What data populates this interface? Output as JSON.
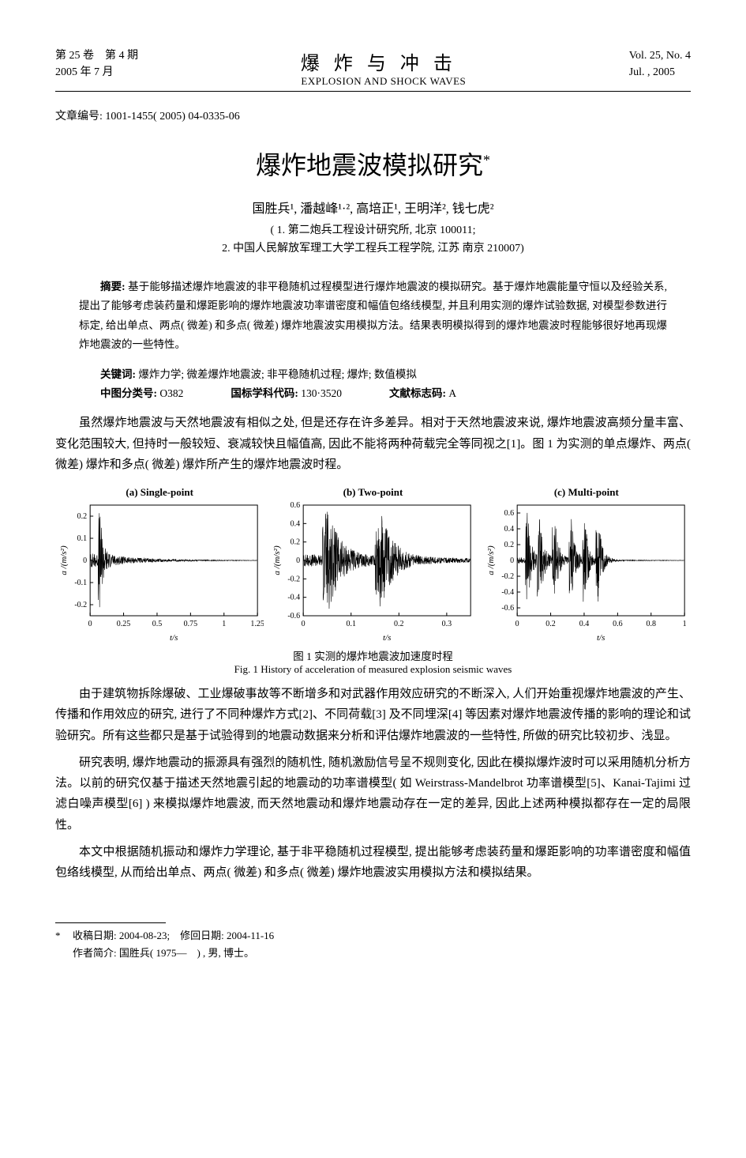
{
  "header": {
    "volume_line": "第 25 卷　第 4 期",
    "date_line": "2005 年 7 月",
    "journal_cn": "爆炸与冲击",
    "journal_en": "EXPLOSION AND SHOCK WAVES",
    "volno": "Vol. 25, No. 4",
    "issue_date": "Jul. , 2005"
  },
  "article_id": "文章编号: 1001-1455( 2005) 04-0335-06",
  "title": "爆炸地震波模拟研究",
  "title_mark": "*",
  "authors_html": "国胜兵¹, 潘越峰¹·², 高培正¹, 王明洋², 钱七虎²",
  "affil1": "( 1. 第二炮兵工程设计研究所, 北京 100011;",
  "affil2": "2. 中国人民解放军理工大学工程兵工程学院, 江苏 南京 210007)",
  "abstract": {
    "label": "摘要: ",
    "text": "基于能够描述爆炸地震波的非平稳随机过程模型进行爆炸地震波的模拟研究。基于爆炸地震能量守恒以及经验关系, 提出了能够考虑装药量和爆距影响的爆炸地震波功率谱密度和幅值包络线模型, 并且利用实测的爆炸试验数据, 对模型参数进行标定, 给出单点、两点( 微差) 和多点( 微差) 爆炸地震波实用模拟方法。结果表明模拟得到的爆炸地震波时程能够很好地再现爆炸地震波的一些特性。"
  },
  "keywords_label": "关键词: ",
  "keywords": "爆炸力学; 微差爆炸地震波; 非平稳随机过程; 爆炸; 数值模拟",
  "clc_label": "中图分类号: ",
  "clc": "O382",
  "subject_label": "国标学科代码: ",
  "subject": "130·3520",
  "doc_label": "文献标志码: ",
  "doc": "A",
  "para1": "虽然爆炸地震波与天然地震波有相似之处, 但是还存在许多差异。相对于天然地震波来说, 爆炸地震波高频分量丰富、变化范围较大, 但持时一般较短、衰减较快且幅值高, 因此不能将两种荷载完全等同视之[1]。图 1 为实测的单点爆炸、两点( 微差) 爆炸和多点( 微差) 爆炸所产生的爆炸地震波时程。",
  "figure": {
    "caption_cn": "图 1 实测的爆炸地震波加速度时程",
    "caption_en": "Fig. 1 History of acceleration of measured explosion seismic waves",
    "ylabel": "a /(m/s²)",
    "xlabel": "t/s",
    "axis_color": "#000000",
    "line_color": "#000000",
    "line_width": 0.6,
    "bg": "#ffffff",
    "panels": [
      {
        "title": "(a) Single-point",
        "xlim": [
          0,
          1.25
        ],
        "xticks": [
          0,
          0.25,
          0.5,
          0.75,
          1.0,
          1.25
        ],
        "ylim": [
          -0.25,
          0.25
        ],
        "yticks": [
          -0.2,
          -0.1,
          0,
          0.1,
          0.2
        ],
        "burst_centers": [
          0.07
        ],
        "burst_amp": 0.22,
        "tail_amp": 0.035
      },
      {
        "title": "(b) Two-point",
        "xlim": [
          0,
          0.35
        ],
        "xticks": [
          0,
          0.1,
          0.2,
          0.3
        ],
        "ylim": [
          -0.6,
          0.6
        ],
        "yticks": [
          -0.6,
          -0.4,
          -0.2,
          0,
          0.2,
          0.4,
          0.6
        ],
        "burst_centers": [
          0.05,
          0.16
        ],
        "burst_amp": 0.55,
        "tail_amp": 0.07
      },
      {
        "title": "(c) Multi-point",
        "xlim": [
          0,
          1.0
        ],
        "xticks": [
          0,
          0.2,
          0.4,
          0.6,
          0.8,
          1.0
        ],
        "ylim": [
          -0.7,
          0.7
        ],
        "yticks": [
          -0.6,
          -0.4,
          -0.2,
          0,
          0.2,
          0.4,
          0.6
        ],
        "burst_centers": [
          0.06,
          0.13,
          0.22,
          0.32,
          0.4,
          0.48
        ],
        "burst_amp": 0.6,
        "tail_amp": 0.04
      }
    ]
  },
  "para2": "由于建筑物拆除爆破、工业爆破事故等不断增多和对武器作用效应研究的不断深入, 人们开始重视爆炸地震波的产生、传播和作用效应的研究, 进行了不同种爆炸方式[2]、不同荷载[3] 及不同埋深[4] 等因素对爆炸地震波传播的影响的理论和试验研究。所有这些都只是基于试验得到的地震动数据来分析和评估爆炸地震波的一些特性, 所做的研究比较初步、浅显。",
  "para3": "研究表明, 爆炸地震动的振源具有强烈的随机性, 随机激励信号呈不规则变化, 因此在模拟爆炸波时可以采用随机分析方法。以前的研究仅基于描述天然地震引起的地震动的功率谱模型( 如 Weirstrass-Mandelbrot 功率谱模型[5]、Kanai-Tajimi 过滤白噪声模型[6] ) 来模拟爆炸地震波, 而天然地震动和爆炸地震动存在一定的差异, 因此上述两种模拟都存在一定的局限性。",
  "para4": "本文中根据随机振动和爆炸力学理论, 基于非平稳随机过程模型, 提出能够考虑装药量和爆距影响的功率谱密度和幅值包络线模型, 从而给出单点、两点( 微差) 和多点( 微差) 爆炸地震波实用模拟方法和模拟结果。",
  "footnote": {
    "mark": "*",
    "received": "收稿日期: 2004-08-23;　修回日期: 2004-11-16",
    "author": "作者简介: 国胜兵( 1975—　) , 男, 博士。"
  }
}
